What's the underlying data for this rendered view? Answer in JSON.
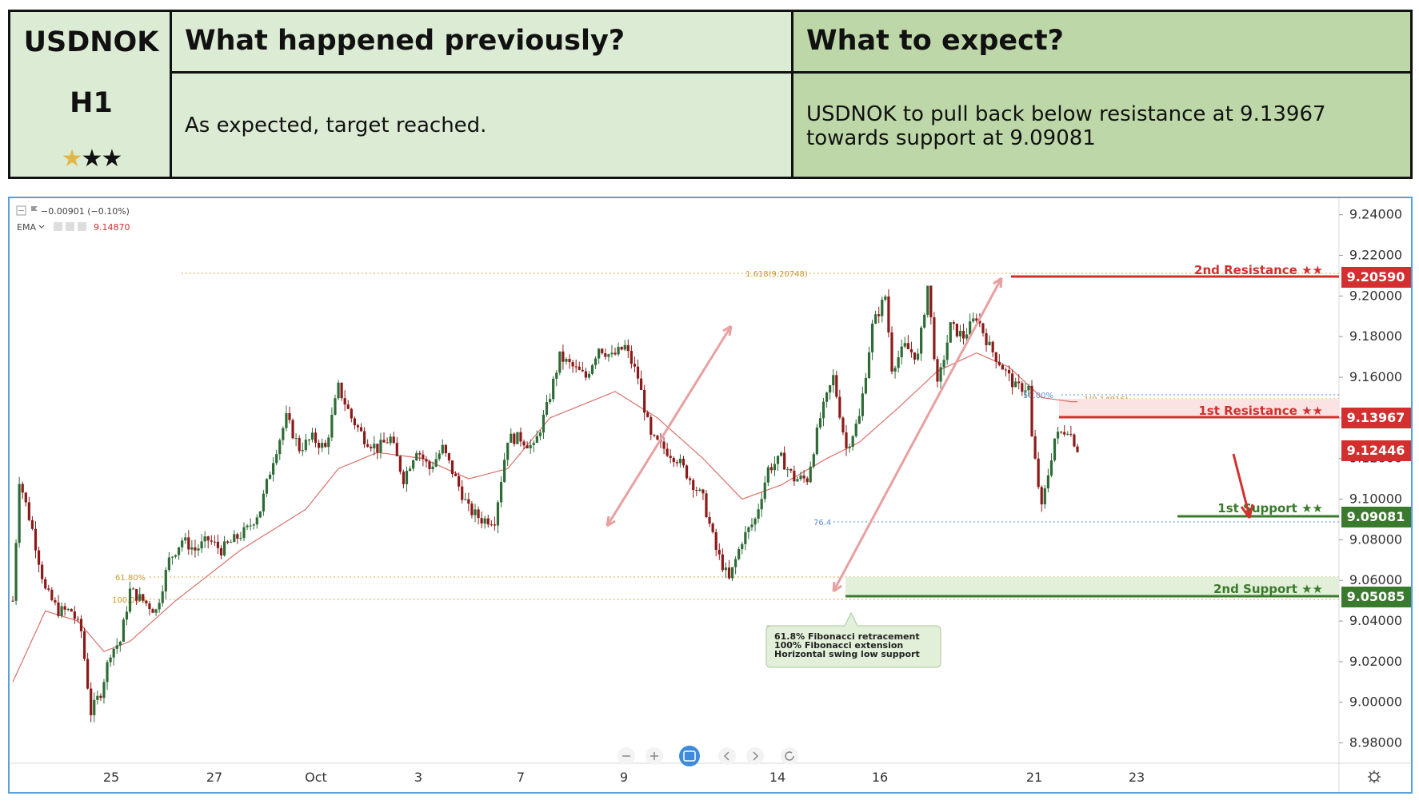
{
  "header": {
    "symbol": "USDNOK",
    "timeframe": "H1",
    "stars": {
      "filled": 1,
      "total": 3
    },
    "prev_title": "What happened previously?",
    "prev_text": "As expected, target reached.",
    "expect_title": "What to expect?",
    "expect_line1": "USDNOK to pull back below resistance at 9.13967",
    "expect_line2": "towards support at 9.09081"
  },
  "legend": {
    "change": "−0.00901 (−0.10%)",
    "ema_label": "EMA",
    "ema_value": "9.14870"
  },
  "colors": {
    "bull": "#2e6b36",
    "bear": "#8b1a1a",
    "ema": "#d9706a",
    "resistance": "#d32f2f",
    "support": "#3a7a2c",
    "fib": "#e0a040",
    "fib_blue": "#5a8fd8"
  },
  "toolbar": {
    "icons": [
      "zoom-out-icon",
      "zoom-in-icon",
      "fit-screen-icon",
      "scroll-left-icon",
      "scroll-right-icon",
      "reset-icon"
    ],
    "settings_icon": "gear-icon"
  },
  "chart_data": {
    "type": "candlestick",
    "title": "",
    "ylim": [
      8.97,
      9.245
    ],
    "y_ticks": [
      "9.24000",
      "9.22000",
      "9.20000",
      "9.18000",
      "9.16000",
      "9.14000",
      "9.12000",
      "9.10000",
      "9.08000",
      "9.06000",
      "9.04000",
      "9.02000",
      "9.00000",
      "8.98000"
    ],
    "x_labels": [
      "25",
      "27",
      "Oct",
      "3",
      "7",
      "9",
      "14",
      "16",
      "21",
      "23"
    ],
    "price_path": [
      [
        0,
        9.05
      ],
      [
        2,
        9.11
      ],
      [
        6,
        9.085
      ],
      [
        10,
        9.055
      ],
      [
        14,
        9.045
      ],
      [
        18,
        9.045
      ],
      [
        21,
        9.035
      ],
      [
        24,
        8.995
      ],
      [
        27,
        9.005
      ],
      [
        30,
        9.025
      ],
      [
        33,
        9.03
      ],
      [
        36,
        9.055
      ],
      [
        40,
        9.05
      ],
      [
        44,
        9.045
      ],
      [
        48,
        9.07
      ],
      [
        52,
        9.08
      ],
      [
        56,
        9.075
      ],
      [
        60,
        9.08
      ],
      [
        64,
        9.075
      ],
      [
        68,
        9.08
      ],
      [
        72,
        9.085
      ],
      [
        76,
        9.095
      ],
      [
        80,
        9.12
      ],
      [
        84,
        9.14
      ],
      [
        88,
        9.125
      ],
      [
        92,
        9.13
      ],
      [
        96,
        9.125
      ],
      [
        100,
        9.155
      ],
      [
        104,
        9.14
      ],
      [
        108,
        9.13
      ],
      [
        112,
        9.125
      ],
      [
        116,
        9.13
      ],
      [
        120,
        9.11
      ],
      [
        124,
        9.125
      ],
      [
        128,
        9.115
      ],
      [
        132,
        9.125
      ],
      [
        136,
        9.11
      ],
      [
        140,
        9.095
      ],
      [
        144,
        9.09
      ],
      [
        148,
        9.09
      ],
      [
        152,
        9.13
      ],
      [
        156,
        9.13
      ],
      [
        160,
        9.125
      ],
      [
        164,
        9.145
      ],
      [
        168,
        9.17
      ],
      [
        172,
        9.165
      ],
      [
        176,
        9.16
      ],
      [
        180,
        9.175
      ],
      [
        184,
        9.17
      ],
      [
        188,
        9.175
      ],
      [
        192,
        9.16
      ],
      [
        196,
        9.13
      ],
      [
        200,
        9.125
      ],
      [
        204,
        9.12
      ],
      [
        208,
        9.11
      ],
      [
        212,
        9.1
      ],
      [
        216,
        9.075
      ],
      [
        220,
        9.06
      ],
      [
        224,
        9.08
      ],
      [
        228,
        9.09
      ],
      [
        232,
        9.115
      ],
      [
        236,
        9.12
      ],
      [
        240,
        9.11
      ],
      [
        244,
        9.11
      ],
      [
        248,
        9.14
      ],
      [
        252,
        9.16
      ],
      [
        256,
        9.125
      ],
      [
        260,
        9.14
      ],
      [
        264,
        9.185
      ],
      [
        268,
        9.2
      ],
      [
        270,
        9.165
      ],
      [
        274,
        9.175
      ],
      [
        278,
        9.17
      ],
      [
        281,
        9.205
      ],
      [
        284,
        9.155
      ],
      [
        288,
        9.185
      ],
      [
        292,
        9.18
      ],
      [
        296,
        9.19
      ],
      [
        300,
        9.175
      ],
      [
        304,
        9.165
      ],
      [
        308,
        9.155
      ],
      [
        312,
        9.155
      ],
      [
        313,
        9.13
      ],
      [
        316,
        9.095
      ],
      [
        320,
        9.13
      ],
      [
        324,
        9.135
      ],
      [
        327,
        9.125
      ]
    ],
    "ema_path": [
      [
        0,
        9.01
      ],
      [
        10,
        9.045
      ],
      [
        20,
        9.04
      ],
      [
        28,
        9.025
      ],
      [
        36,
        9.03
      ],
      [
        50,
        9.05
      ],
      [
        70,
        9.075
      ],
      [
        90,
        9.095
      ],
      [
        100,
        9.115
      ],
      [
        112,
        9.123
      ],
      [
        126,
        9.12
      ],
      [
        140,
        9.11
      ],
      [
        152,
        9.115
      ],
      [
        165,
        9.14
      ],
      [
        185,
        9.153
      ],
      [
        198,
        9.14
      ],
      [
        212,
        9.12
      ],
      [
        224,
        9.1
      ],
      [
        236,
        9.107
      ],
      [
        250,
        9.12
      ],
      [
        260,
        9.128
      ],
      [
        272,
        9.145
      ],
      [
        284,
        9.163
      ],
      [
        296,
        9.172
      ],
      [
        306,
        9.165
      ],
      [
        316,
        9.15
      ],
      [
        325,
        9.148
      ]
    ],
    "levels": [
      {
        "name": "2nd Resistance",
        "value": "9.20590",
        "stars": "★★",
        "kind": "resistance"
      },
      {
        "name": "1st Resistance",
        "value": "9.13967",
        "stars": "★★",
        "kind": "resistance"
      },
      {
        "name": "current",
        "value": "9.12446",
        "kind": "current"
      },
      {
        "name": "1st Support",
        "value": "9.09081",
        "stars": "★★",
        "kind": "support"
      },
      {
        "name": "2nd Support",
        "value": "9.05085",
        "stars": "★★",
        "kind": "support"
      }
    ],
    "fib_labels": {
      "ext_1618": "1.618(9.20748)",
      "retr_50": "50.00%",
      "ext_1": "1(9.14816)",
      "retr_764": "76.4",
      "retr_618": "61.80%",
      "ext_100": "100.00%"
    },
    "annotation": {
      "line1": "61.8% Fibonacci retracement",
      "line2": "100% Fibonacci extension",
      "line3": "Horizontal swing low support"
    }
  }
}
